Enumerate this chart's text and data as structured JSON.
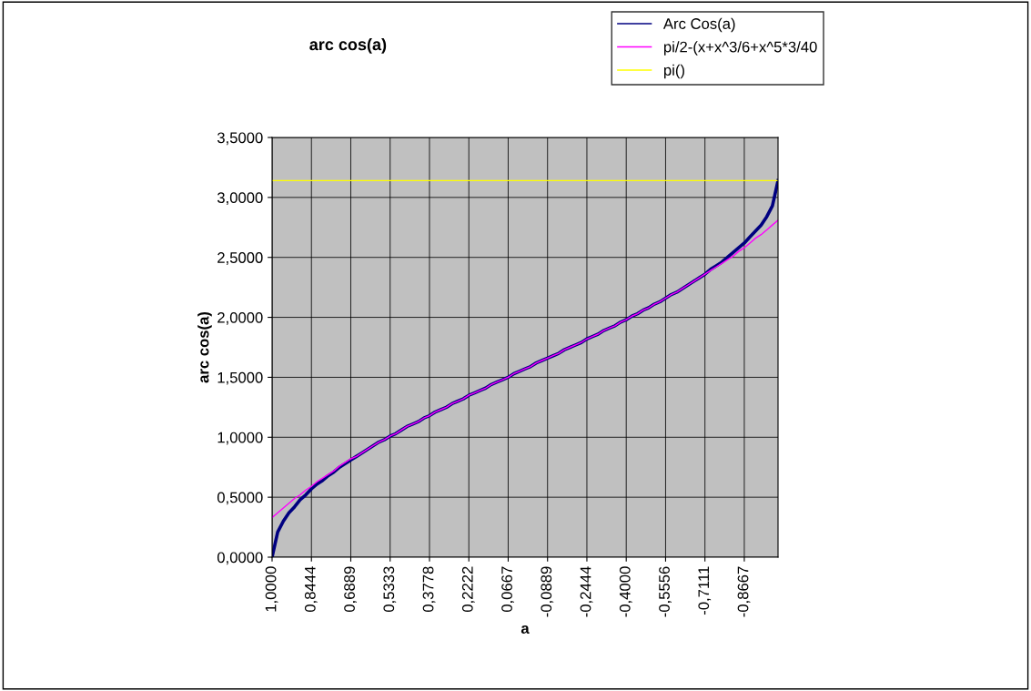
{
  "chart_data": {
    "type": "line",
    "title": "arc cos(a)",
    "xlabel": "a",
    "ylabel": "arc cos(a)",
    "categories": [
      "1,0000",
      null,
      null,
      null,
      null,
      null,
      null,
      "0,8444",
      null,
      null,
      null,
      null,
      null,
      null,
      "0,6889",
      null,
      null,
      null,
      null,
      null,
      null,
      "0,5333",
      null,
      null,
      null,
      null,
      null,
      null,
      "0,3778",
      null,
      null,
      null,
      null,
      null,
      null,
      "0,2222",
      null,
      null,
      null,
      null,
      null,
      null,
      "0,0667",
      null,
      null,
      null,
      null,
      null,
      null,
      "-0,0889",
      null,
      null,
      null,
      null,
      null,
      null,
      "-0,2444",
      null,
      null,
      null,
      null,
      null,
      null,
      "-0,4000",
      null,
      null,
      null,
      null,
      null,
      null,
      "-0,5556",
      null,
      null,
      null,
      null,
      null,
      null,
      "-0,7111",
      null,
      null,
      null,
      null,
      null,
      null,
      "-0,8667",
      null,
      null,
      null,
      null,
      null,
      null
    ],
    "series": [
      {
        "name": "Arc Cos(a)",
        "color": "#000080",
        "values": [
          0,
          0.21,
          0.3,
          0.37,
          0.42,
          0.48,
          0.52,
          0.57,
          0.61,
          0.64,
          0.68,
          0.71,
          0.75,
          0.78,
          0.81,
          0.84,
          0.87,
          0.9,
          0.93,
          0.96,
          0.98,
          1.01,
          1.03,
          1.06,
          1.09,
          1.11,
          1.13,
          1.16,
          1.18,
          1.21,
          1.23,
          1.25,
          1.28,
          1.3,
          1.32,
          1.35,
          1.37,
          1.39,
          1.41,
          1.44,
          1.46,
          1.48,
          1.5,
          1.53,
          1.55,
          1.57,
          1.59,
          1.62,
          1.64,
          1.66,
          1.68,
          1.7,
          1.73,
          1.75,
          1.77,
          1.79,
          1.82,
          1.84,
          1.86,
          1.89,
          1.91,
          1.93,
          1.96,
          1.98,
          2.01,
          2.03,
          2.06,
          2.08,
          2.11,
          2.13,
          2.16,
          2.19,
          2.21,
          2.24,
          2.27,
          2.3,
          2.33,
          2.36,
          2.4,
          2.43,
          2.46,
          2.5,
          2.54,
          2.58,
          2.62,
          2.67,
          2.72,
          2.77,
          2.84,
          2.93,
          3.14
        ]
      },
      {
        "name": "pi/2-(x+x^3/6+x^5*3/40",
        "color": "#ff00ff",
        "values": [
          0.33,
          0.37,
          0.41,
          0.45,
          0.49,
          0.52,
          0.56,
          0.59,
          0.63,
          0.66,
          0.69,
          0.72,
          0.76,
          0.79,
          0.82,
          0.84,
          0.87,
          0.9,
          0.93,
          0.96,
          0.98,
          1.01,
          1.03,
          1.06,
          1.09,
          1.11,
          1.13,
          1.16,
          1.18,
          1.21,
          1.23,
          1.25,
          1.28,
          1.3,
          1.32,
          1.35,
          1.37,
          1.39,
          1.41,
          1.44,
          1.46,
          1.48,
          1.5,
          1.53,
          1.55,
          1.57,
          1.59,
          1.62,
          1.64,
          1.66,
          1.68,
          1.7,
          1.73,
          1.75,
          1.77,
          1.79,
          1.82,
          1.84,
          1.86,
          1.89,
          1.91,
          1.93,
          1.96,
          1.98,
          2.01,
          2.03,
          2.06,
          2.08,
          2.11,
          2.13,
          2.16,
          2.19,
          2.21,
          2.24,
          2.27,
          2.3,
          2.33,
          2.36,
          2.39,
          2.42,
          2.45,
          2.48,
          2.51,
          2.55,
          2.58,
          2.62,
          2.66,
          2.69,
          2.73,
          2.77,
          2.81
        ]
      },
      {
        "name": "pi()",
        "color": "#ffff00",
        "values": [
          3.14,
          3.14,
          3.14,
          3.14,
          3.14,
          3.14,
          3.14,
          3.14,
          3.14,
          3.14,
          3.14,
          3.14,
          3.14,
          3.14,
          3.14,
          3.14,
          3.14,
          3.14,
          3.14,
          3.14,
          3.14,
          3.14,
          3.14,
          3.14,
          3.14,
          3.14,
          3.14,
          3.14,
          3.14,
          3.14,
          3.14,
          3.14,
          3.14,
          3.14,
          3.14,
          3.14,
          3.14,
          3.14,
          3.14,
          3.14,
          3.14,
          3.14,
          3.14,
          3.14,
          3.14,
          3.14,
          3.14,
          3.14,
          3.14,
          3.14,
          3.14,
          3.14,
          3.14,
          3.14,
          3.14,
          3.14,
          3.14,
          3.14,
          3.14,
          3.14,
          3.14,
          3.14,
          3.14,
          3.14,
          3.14,
          3.14,
          3.14,
          3.14,
          3.14,
          3.14,
          3.14,
          3.14,
          3.14,
          3.14,
          3.14,
          3.14,
          3.14,
          3.14,
          3.14,
          3.14,
          3.14,
          3.14,
          3.14,
          3.14,
          3.14,
          3.14,
          3.14,
          3.14,
          3.14,
          3.14,
          3.14
        ]
      }
    ],
    "ylim": [
      0,
      3.5
    ],
    "yticks": [
      {
        "value": 0,
        "label": "0,0000"
      },
      {
        "value": 0.5,
        "label": "0,5000"
      },
      {
        "value": 1,
        "label": "1,0000"
      },
      {
        "value": 1.5,
        "label": "1,5000"
      },
      {
        "value": 2,
        "label": "2,0000"
      },
      {
        "value": 2.5,
        "label": "2,5000"
      },
      {
        "value": 3,
        "label": "3,0000"
      },
      {
        "value": 3.5,
        "label": "3,5000"
      }
    ],
    "grid": true,
    "legend": "top right",
    "marker": "none",
    "line_style": "solid"
  }
}
